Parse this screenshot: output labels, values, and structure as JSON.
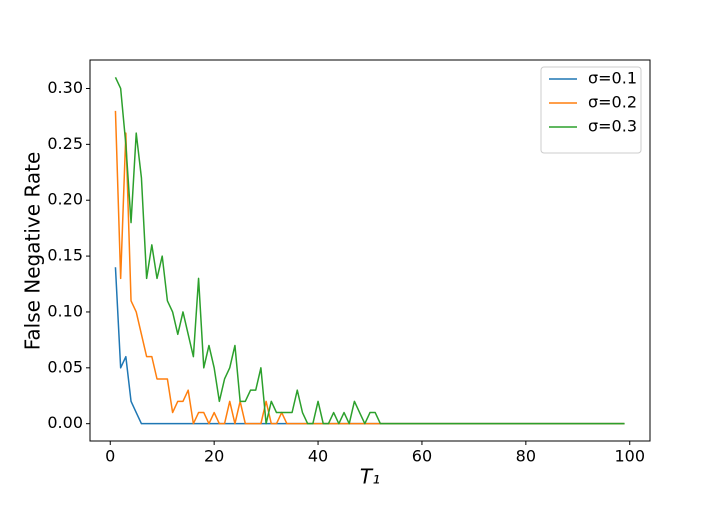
{
  "chart_data": {
    "type": "line",
    "xlabel": "T₁",
    "ylabel": "False Negative Rate",
    "x": [
      1,
      2,
      3,
      4,
      5,
      6,
      7,
      8,
      9,
      10,
      11,
      12,
      13,
      14,
      15,
      16,
      17,
      18,
      19,
      20,
      21,
      22,
      23,
      24,
      25,
      26,
      27,
      28,
      29,
      30,
      31,
      32,
      33,
      34,
      35,
      36,
      37,
      38,
      39,
      40,
      41,
      42,
      43,
      44,
      45,
      46,
      47,
      48,
      49,
      50,
      51,
      52,
      53,
      54,
      55,
      56,
      57,
      58,
      59,
      60,
      61,
      62,
      63,
      64,
      65,
      66,
      67,
      68,
      69,
      70,
      71,
      72,
      73,
      74,
      75,
      76,
      77,
      78,
      79,
      80,
      81,
      82,
      83,
      84,
      85,
      86,
      87,
      88,
      89,
      90,
      91,
      92,
      93,
      94,
      95,
      96,
      97,
      98,
      99
    ],
    "series": [
      {
        "name": "σ=0.1",
        "color": "#1f77b4",
        "values": [
          0.14,
          0.05,
          0.06,
          0.02,
          0.01,
          0,
          0,
          0,
          0,
          0,
          0,
          0,
          0,
          0,
          0,
          0,
          0,
          0,
          0,
          0,
          0,
          0,
          0,
          0,
          0,
          0,
          0,
          0,
          0,
          0,
          0,
          0,
          0,
          0,
          0,
          0,
          0,
          0,
          0,
          0,
          0,
          0,
          0,
          0,
          0,
          0,
          0,
          0,
          0,
          0,
          0,
          0,
          0,
          0,
          0,
          0,
          0,
          0,
          0,
          0,
          0,
          0,
          0,
          0,
          0,
          0,
          0,
          0,
          0,
          0,
          0,
          0,
          0,
          0,
          0,
          0,
          0,
          0,
          0,
          0,
          0,
          0,
          0,
          0,
          0,
          0,
          0,
          0,
          0,
          0,
          0,
          0,
          0,
          0,
          0,
          0,
          0,
          0,
          0
        ]
      },
      {
        "name": "σ=0.2",
        "color": "#ff7f0e",
        "values": [
          0.28,
          0.13,
          0.26,
          0.11,
          0.1,
          0.08,
          0.06,
          0.06,
          0.04,
          0.04,
          0.04,
          0.01,
          0.02,
          0.02,
          0.03,
          0,
          0.01,
          0.01,
          0,
          0.01,
          0,
          0,
          0.02,
          0,
          0.02,
          0,
          0,
          0,
          0,
          0.02,
          0,
          0,
          0.01,
          0,
          0,
          0,
          0,
          0,
          0,
          0,
          0,
          0,
          0,
          0,
          0,
          0,
          0,
          0,
          0,
          0,
          0,
          0,
          0,
          0,
          0,
          0,
          0,
          0,
          0,
          0,
          0,
          0,
          0,
          0,
          0,
          0,
          0,
          0,
          0,
          0,
          0,
          0,
          0,
          0,
          0,
          0,
          0,
          0,
          0,
          0,
          0,
          0,
          0,
          0,
          0,
          0,
          0,
          0,
          0,
          0,
          0,
          0,
          0,
          0,
          0,
          0,
          0,
          0,
          0
        ]
      },
      {
        "name": "σ=0.3",
        "color": "#2ca02c",
        "values": [
          0.31,
          0.3,
          0.25,
          0.18,
          0.26,
          0.22,
          0.13,
          0.16,
          0.13,
          0.15,
          0.11,
          0.1,
          0.08,
          0.1,
          0.08,
          0.06,
          0.13,
          0.05,
          0.07,
          0.05,
          0.02,
          0.04,
          0.05,
          0.07,
          0.02,
          0.02,
          0.03,
          0.03,
          0.05,
          0,
          0.02,
          0.01,
          0.01,
          0.01,
          0.01,
          0.03,
          0.01,
          0,
          0,
          0.02,
          0,
          0,
          0.01,
          0,
          0.01,
          0,
          0.02,
          0.01,
          0,
          0.01,
          0.01,
          0,
          0,
          0,
          0,
          0,
          0,
          0,
          0,
          0,
          0,
          0,
          0,
          0,
          0,
          0,
          0,
          0,
          0,
          0,
          0,
          0,
          0,
          0,
          0,
          0,
          0,
          0,
          0,
          0,
          0,
          0,
          0,
          0,
          0,
          0,
          0,
          0,
          0,
          0,
          0,
          0,
          0,
          0,
          0,
          0,
          0,
          0,
          0
        ]
      }
    ],
    "xlim": [
      -3.9,
      103.9
    ],
    "xticks": [
      0,
      20,
      40,
      60,
      80,
      100
    ],
    "ylim": [
      -0.0155,
      0.3255
    ],
    "yticks": [
      {
        "value": 0,
        "label": "0.00"
      },
      {
        "value": 0.05,
        "label": "0.05"
      },
      {
        "value": 0.1,
        "label": "0.10"
      },
      {
        "value": 0.15,
        "label": "0.15"
      },
      {
        "value": 0.2,
        "label": "0.20"
      },
      {
        "value": 0.25,
        "label": "0.25"
      },
      {
        "value": 0.3,
        "label": "0.30"
      }
    ],
    "legend": "upper right"
  }
}
